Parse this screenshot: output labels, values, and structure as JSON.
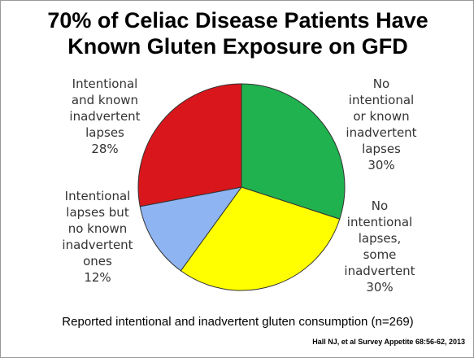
{
  "chart_data": {
    "type": "pie",
    "title": "70% of Celiac Disease Patients Have Known Gluten Exposure on GFD",
    "subtitle": "Reported intentional and inadvertent gluten consumption (n=269)",
    "source": "Hall NJ, et al Survey Appetite 68:56-62, 2013",
    "categories": [
      "No intentional or known inadvertent lapses",
      "No intentional lapses, some inadvertent",
      "Intentional lapses but no known inadvertent ones",
      "Intentional and known inadvertent lapses"
    ],
    "values": [
      30,
      30,
      12,
      28
    ],
    "value_labels": [
      "30%",
      "30%",
      "12%",
      "28%"
    ],
    "colors": [
      "#1fb24f",
      "#ffff00",
      "#8eb4f2",
      "#d9161b"
    ]
  }
}
